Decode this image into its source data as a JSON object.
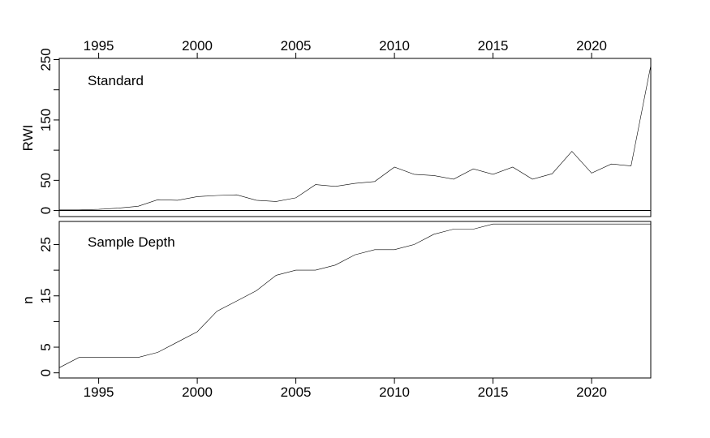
{
  "chart_data": [
    {
      "type": "line",
      "panel_label": "Standard",
      "ylabel": "RWI",
      "x_ticks_top": [
        1995,
        2000,
        2005,
        2010,
        2015,
        2020
      ],
      "y_ticks_labeled": [
        0,
        50,
        150,
        250
      ],
      "y_ticks_all": [
        0,
        50,
        100,
        150,
        200,
        250
      ],
      "xlim": [
        1993,
        2023
      ],
      "ylim": [
        -10,
        252
      ],
      "horizontal_reference": 0,
      "x": [
        1993,
        1994,
        1995,
        1996,
        1997,
        1998,
        1999,
        2000,
        2001,
        2002,
        2003,
        2004,
        2005,
        2006,
        2007,
        2008,
        2009,
        2010,
        2011,
        2012,
        2013,
        2014,
        2015,
        2016,
        2017,
        2018,
        2019,
        2020,
        2021,
        2022,
        2023
      ],
      "y": [
        1,
        1,
        2,
        4,
        7,
        18,
        17,
        23,
        25,
        26,
        17,
        15,
        21,
        43,
        40,
        45,
        48,
        72,
        60,
        58,
        52,
        69,
        60,
        72,
        52,
        61,
        98,
        62,
        77,
        74,
        240
      ]
    },
    {
      "type": "line",
      "panel_label": "Sample Depth",
      "ylabel": "n",
      "x_ticks_bottom": [
        1995,
        2000,
        2005,
        2010,
        2015,
        2020
      ],
      "y_ticks_labeled": [
        0,
        5,
        15,
        25
      ],
      "y_ticks_all": [
        0,
        5,
        10,
        15,
        20,
        25
      ],
      "xlim": [
        1993,
        2023
      ],
      "ylim": [
        -1,
        29.5
      ],
      "x": [
        1993,
        1994,
        1995,
        1996,
        1997,
        1998,
        1999,
        2000,
        2001,
        2002,
        2003,
        2004,
        2005,
        2006,
        2007,
        2008,
        2009,
        2010,
        2011,
        2012,
        2013,
        2014,
        2015,
        2016,
        2017,
        2018,
        2019,
        2020,
        2021,
        2022,
        2023
      ],
      "y": [
        1,
        3,
        3,
        3,
        3,
        4,
        6,
        8,
        12,
        14,
        16,
        19,
        20,
        20,
        21,
        23,
        24,
        24,
        25,
        27,
        28,
        28,
        29,
        29,
        29,
        29,
        29,
        29,
        29,
        29,
        29
      ]
    }
  ]
}
